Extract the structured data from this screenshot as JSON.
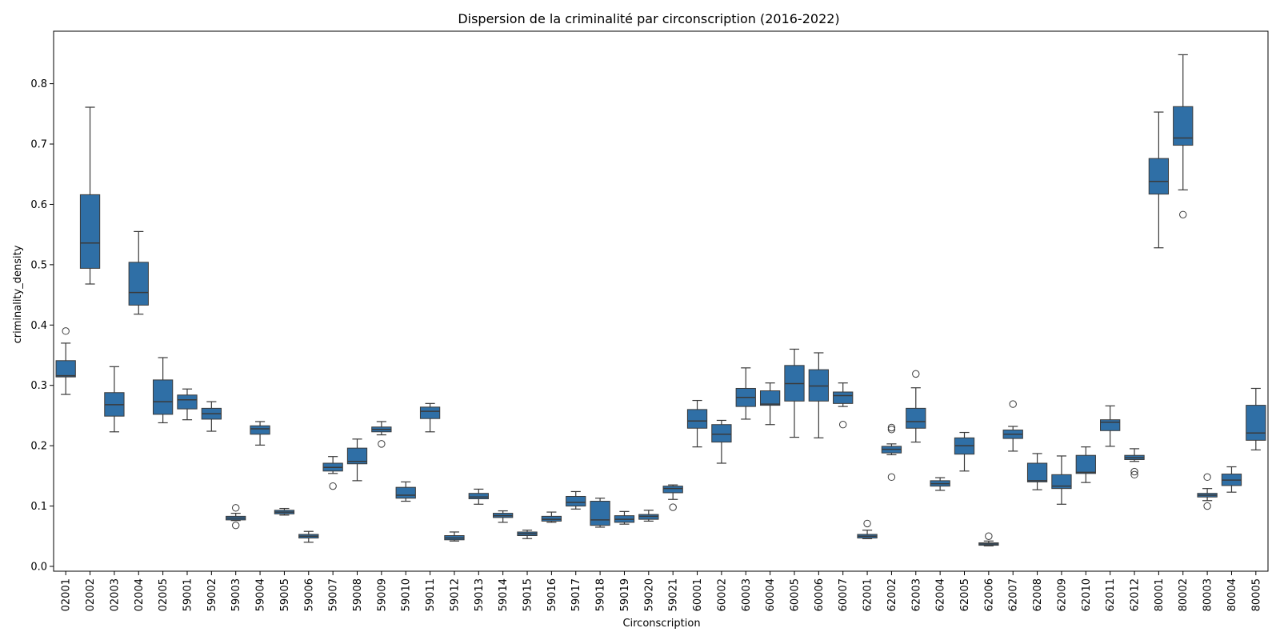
{
  "chart_data": {
    "type": "box",
    "title": "Dispersion de la criminalité par circonscription (2016-2022)",
    "xlabel": "Circonscription",
    "ylabel": "criminality_density",
    "ylim": [
      -0.008,
      0.887
    ],
    "yticks": [
      "0.0",
      "0.1",
      "0.2",
      "0.3",
      "0.4",
      "0.5",
      "0.6",
      "0.7",
      "0.8"
    ],
    "grid": false,
    "color": "#2f6fa6",
    "categories": [
      "02001",
      "02002",
      "02003",
      "02004",
      "02005",
      "59001",
      "59002",
      "59003",
      "59004",
      "59005",
      "59006",
      "59007",
      "59008",
      "59009",
      "59010",
      "59011",
      "59012",
      "59013",
      "59014",
      "59015",
      "59016",
      "59017",
      "59018",
      "59019",
      "59020",
      "59021",
      "60001",
      "60002",
      "60003",
      "60004",
      "60005",
      "60006",
      "60007",
      "62001",
      "62002",
      "62003",
      "62004",
      "62005",
      "62006",
      "62007",
      "62008",
      "62009",
      "62010",
      "62011",
      "62012",
      "80001",
      "80002",
      "80003",
      "80004",
      "80005"
    ],
    "boxes": [
      {
        "min": 0.285,
        "q1": 0.314,
        "median": 0.316,
        "q3": 0.341,
        "max": 0.37,
        "outliers": [
          0.39
        ]
      },
      {
        "min": 0.468,
        "q1": 0.494,
        "median": 0.536,
        "q3": 0.616,
        "max": 0.761,
        "outliers": []
      },
      {
        "min": 0.223,
        "q1": 0.249,
        "median": 0.268,
        "q3": 0.288,
        "max": 0.331,
        "outliers": []
      },
      {
        "min": 0.418,
        "q1": 0.433,
        "median": 0.454,
        "q3": 0.504,
        "max": 0.555,
        "outliers": []
      },
      {
        "min": 0.238,
        "q1": 0.252,
        "median": 0.273,
        "q3": 0.309,
        "max": 0.346,
        "outliers": []
      },
      {
        "min": 0.243,
        "q1": 0.261,
        "median": 0.276,
        "q3": 0.284,
        "max": 0.294,
        "outliers": []
      },
      {
        "min": 0.224,
        "q1": 0.244,
        "median": 0.253,
        "q3": 0.262,
        "max": 0.273,
        "outliers": []
      },
      {
        "min": 0.076,
        "q1": 0.077,
        "median": 0.08,
        "q3": 0.083,
        "max": 0.088,
        "outliers": [
          0.097,
          0.068
        ]
      },
      {
        "min": 0.201,
        "q1": 0.219,
        "median": 0.228,
        "q3": 0.233,
        "max": 0.24,
        "outliers": []
      },
      {
        "min": 0.085,
        "q1": 0.087,
        "median": 0.09,
        "q3": 0.093,
        "max": 0.096,
        "outliers": []
      },
      {
        "min": 0.04,
        "q1": 0.047,
        "median": 0.05,
        "q3": 0.053,
        "max": 0.058,
        "outliers": []
      },
      {
        "min": 0.154,
        "q1": 0.158,
        "median": 0.164,
        "q3": 0.171,
        "max": 0.182,
        "outliers": [
          0.133
        ]
      },
      {
        "min": 0.142,
        "q1": 0.17,
        "median": 0.174,
        "q3": 0.196,
        "max": 0.211,
        "outliers": []
      },
      {
        "min": 0.218,
        "q1": 0.223,
        "median": 0.227,
        "q3": 0.231,
        "max": 0.24,
        "outliers": [
          0.203
        ]
      },
      {
        "min": 0.108,
        "q1": 0.113,
        "median": 0.118,
        "q3": 0.131,
        "max": 0.14,
        "outliers": []
      },
      {
        "min": 0.223,
        "q1": 0.245,
        "median": 0.257,
        "q3": 0.264,
        "max": 0.27,
        "outliers": []
      },
      {
        "min": 0.042,
        "q1": 0.044,
        "median": 0.047,
        "q3": 0.051,
        "max": 0.057,
        "outliers": []
      },
      {
        "min": 0.103,
        "q1": 0.112,
        "median": 0.115,
        "q3": 0.121,
        "max": 0.128,
        "outliers": []
      },
      {
        "min": 0.073,
        "q1": 0.081,
        "median": 0.084,
        "q3": 0.088,
        "max": 0.092,
        "outliers": []
      },
      {
        "min": 0.046,
        "q1": 0.051,
        "median": 0.054,
        "q3": 0.057,
        "max": 0.06,
        "outliers": []
      },
      {
        "min": 0.073,
        "q1": 0.075,
        "median": 0.078,
        "q3": 0.083,
        "max": 0.09,
        "outliers": []
      },
      {
        "min": 0.095,
        "q1": 0.1,
        "median": 0.106,
        "q3": 0.116,
        "max": 0.124,
        "outliers": []
      },
      {
        "min": 0.065,
        "q1": 0.068,
        "median": 0.077,
        "q3": 0.108,
        "max": 0.113,
        "outliers": []
      },
      {
        "min": 0.07,
        "q1": 0.073,
        "median": 0.078,
        "q3": 0.084,
        "max": 0.091,
        "outliers": []
      },
      {
        "min": 0.075,
        "q1": 0.078,
        "median": 0.083,
        "q3": 0.086,
        "max": 0.093,
        "outliers": []
      },
      {
        "min": 0.111,
        "q1": 0.122,
        "median": 0.129,
        "q3": 0.133,
        "max": 0.135,
        "outliers": [
          0.098
        ]
      },
      {
        "min": 0.198,
        "q1": 0.229,
        "median": 0.241,
        "q3": 0.26,
        "max": 0.275,
        "outliers": []
      },
      {
        "min": 0.171,
        "q1": 0.206,
        "median": 0.219,
        "q3": 0.235,
        "max": 0.242,
        "outliers": []
      },
      {
        "min": 0.244,
        "q1": 0.265,
        "median": 0.28,
        "q3": 0.295,
        "max": 0.329,
        "outliers": []
      },
      {
        "min": 0.235,
        "q1": 0.267,
        "median": 0.269,
        "q3": 0.291,
        "max": 0.304,
        "outliers": []
      },
      {
        "min": 0.214,
        "q1": 0.274,
        "median": 0.303,
        "q3": 0.333,
        "max": 0.36,
        "outliers": []
      },
      {
        "min": 0.213,
        "q1": 0.274,
        "median": 0.299,
        "q3": 0.326,
        "max": 0.354,
        "outliers": []
      },
      {
        "min": 0.265,
        "q1": 0.27,
        "median": 0.283,
        "q3": 0.289,
        "max": 0.304,
        "outliers": [
          0.235
        ]
      },
      {
        "min": 0.046,
        "q1": 0.047,
        "median": 0.05,
        "q3": 0.053,
        "max": 0.06,
        "outliers": [
          0.071
        ]
      },
      {
        "min": 0.185,
        "q1": 0.188,
        "median": 0.194,
        "q3": 0.199,
        "max": 0.203,
        "outliers": [
          0.23,
          0.227,
          0.148
        ]
      },
      {
        "min": 0.206,
        "q1": 0.229,
        "median": 0.24,
        "q3": 0.262,
        "max": 0.296,
        "outliers": [
          0.319
        ]
      },
      {
        "min": 0.126,
        "q1": 0.133,
        "median": 0.137,
        "q3": 0.142,
        "max": 0.147,
        "outliers": []
      },
      {
        "min": 0.158,
        "q1": 0.186,
        "median": 0.2,
        "q3": 0.213,
        "max": 0.222,
        "outliers": []
      },
      {
        "min": 0.034,
        "q1": 0.035,
        "median": 0.037,
        "q3": 0.039,
        "max": 0.042,
        "outliers": [
          0.05
        ]
      },
      {
        "min": 0.191,
        "q1": 0.212,
        "median": 0.219,
        "q3": 0.226,
        "max": 0.232,
        "outliers": [
          0.269
        ]
      },
      {
        "min": 0.127,
        "q1": 0.14,
        "median": 0.142,
        "q3": 0.171,
        "max": 0.187,
        "outliers": []
      },
      {
        "min": 0.103,
        "q1": 0.129,
        "median": 0.133,
        "q3": 0.152,
        "max": 0.183,
        "outliers": []
      },
      {
        "min": 0.139,
        "q1": 0.154,
        "median": 0.156,
        "q3": 0.184,
        "max": 0.198,
        "outliers": []
      },
      {
        "min": 0.199,
        "q1": 0.225,
        "median": 0.239,
        "q3": 0.243,
        "max": 0.266,
        "outliers": []
      },
      {
        "min": 0.174,
        "q1": 0.177,
        "median": 0.18,
        "q3": 0.184,
        "max": 0.195,
        "outliers": [
          0.157,
          0.152
        ]
      },
      {
        "min": 0.528,
        "q1": 0.617,
        "median": 0.638,
        "q3": 0.676,
        "max": 0.753,
        "outliers": []
      },
      {
        "min": 0.624,
        "q1": 0.698,
        "median": 0.71,
        "q3": 0.762,
        "max": 0.848,
        "outliers": [
          0.583
        ]
      },
      {
        "min": 0.109,
        "q1": 0.115,
        "median": 0.118,
        "q3": 0.121,
        "max": 0.129,
        "outliers": [
          0.148,
          0.1
        ]
      },
      {
        "min": 0.123,
        "q1": 0.134,
        "median": 0.143,
        "q3": 0.153,
        "max": 0.165,
        "outliers": []
      },
      {
        "min": 0.193,
        "q1": 0.209,
        "median": 0.221,
        "q3": 0.267,
        "max": 0.295,
        "outliers": []
      }
    ]
  }
}
